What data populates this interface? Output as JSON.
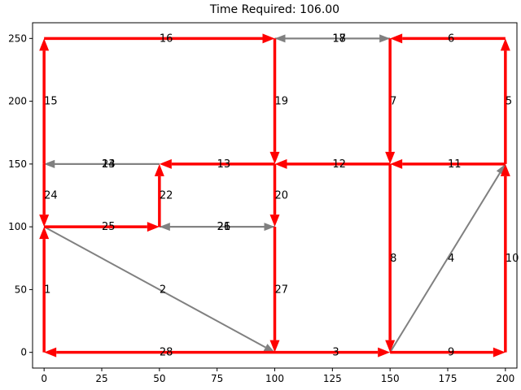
{
  "chart_data": {
    "type": "network",
    "title": "Time Required: 106.00",
    "xlabel": "",
    "ylabel": "",
    "xlim": [
      -5,
      205
    ],
    "ylim": [
      -12.5,
      262.5
    ],
    "x_ticks": [
      0,
      25,
      50,
      75,
      100,
      125,
      150,
      175,
      200
    ],
    "y_ticks": [
      0,
      50,
      100,
      150,
      200,
      250
    ],
    "grid": false,
    "colors": {
      "selected": "#ff0000",
      "unselected": "#808080",
      "axis": "#000000"
    },
    "edges": [
      {
        "label": "1",
        "from": [
          0,
          0
        ],
        "to": [
          0,
          100
        ],
        "selected": true
      },
      {
        "label": "2",
        "from": [
          0,
          100
        ],
        "to": [
          100,
          0
        ],
        "selected": false
      },
      {
        "label": "3",
        "from": [
          100,
          0
        ],
        "to": [
          150,
          0
        ],
        "selected": true
      },
      {
        "label": "4",
        "from": [
          150,
          0
        ],
        "to": [
          200,
          150
        ],
        "selected": false
      },
      {
        "label": "5",
        "from": [
          200,
          150
        ],
        "to": [
          200,
          250
        ],
        "selected": true
      },
      {
        "label": "6",
        "from": [
          200,
          250
        ],
        "to": [
          150,
          250
        ],
        "selected": true
      },
      {
        "label": "7",
        "from": [
          150,
          250
        ],
        "to": [
          150,
          150
        ],
        "selected": true
      },
      {
        "label": "8",
        "from": [
          150,
          150
        ],
        "to": [
          150,
          0
        ],
        "selected": true
      },
      {
        "label": "9",
        "from": [
          150,
          0
        ],
        "to": [
          200,
          0
        ],
        "selected": true
      },
      {
        "label": "10",
        "from": [
          200,
          0
        ],
        "to": [
          200,
          150
        ],
        "selected": true
      },
      {
        "label": "11",
        "from": [
          200,
          150
        ],
        "to": [
          150,
          150
        ],
        "selected": true
      },
      {
        "label": "12",
        "from": [
          150,
          150
        ],
        "to": [
          100,
          150
        ],
        "selected": true
      },
      {
        "label": "13",
        "from": [
          100,
          150
        ],
        "to": [
          50,
          150
        ],
        "selected": true
      },
      {
        "label": "14",
        "from": [
          50,
          150
        ],
        "to": [
          0,
          150
        ],
        "selected": false
      },
      {
        "label": "15",
        "from": [
          0,
          150
        ],
        "to": [
          0,
          250
        ],
        "selected": true
      },
      {
        "label": "16",
        "from": [
          0,
          250
        ],
        "to": [
          100,
          250
        ],
        "selected": true
      },
      {
        "label": "17",
        "from": [
          100,
          250
        ],
        "to": [
          150,
          250
        ],
        "selected": false
      },
      {
        "label": "18",
        "from": [
          150,
          250
        ],
        "to": [
          100,
          250
        ],
        "selected": false
      },
      {
        "label": "19",
        "from": [
          100,
          250
        ],
        "to": [
          100,
          150
        ],
        "selected": true
      },
      {
        "label": "20",
        "from": [
          100,
          150
        ],
        "to": [
          100,
          100
        ],
        "selected": true
      },
      {
        "label": "21",
        "from": [
          100,
          100
        ],
        "to": [
          50,
          100
        ],
        "selected": false
      },
      {
        "label": "22",
        "from": [
          50,
          100
        ],
        "to": [
          50,
          150
        ],
        "selected": true
      },
      {
        "label": "23",
        "from": [
          50,
          150
        ],
        "to": [
          0,
          150
        ],
        "selected": false
      },
      {
        "label": "24",
        "from": [
          0,
          150
        ],
        "to": [
          0,
          100
        ],
        "selected": true
      },
      {
        "label": "25",
        "from": [
          0,
          100
        ],
        "to": [
          50,
          100
        ],
        "selected": true
      },
      {
        "label": "26",
        "from": [
          50,
          100
        ],
        "to": [
          100,
          100
        ],
        "selected": false
      },
      {
        "label": "27",
        "from": [
          100,
          100
        ],
        "to": [
          100,
          0
        ],
        "selected": true
      },
      {
        "label": "28",
        "from": [
          100,
          0
        ],
        "to": [
          0,
          0
        ],
        "selected": true
      }
    ]
  }
}
